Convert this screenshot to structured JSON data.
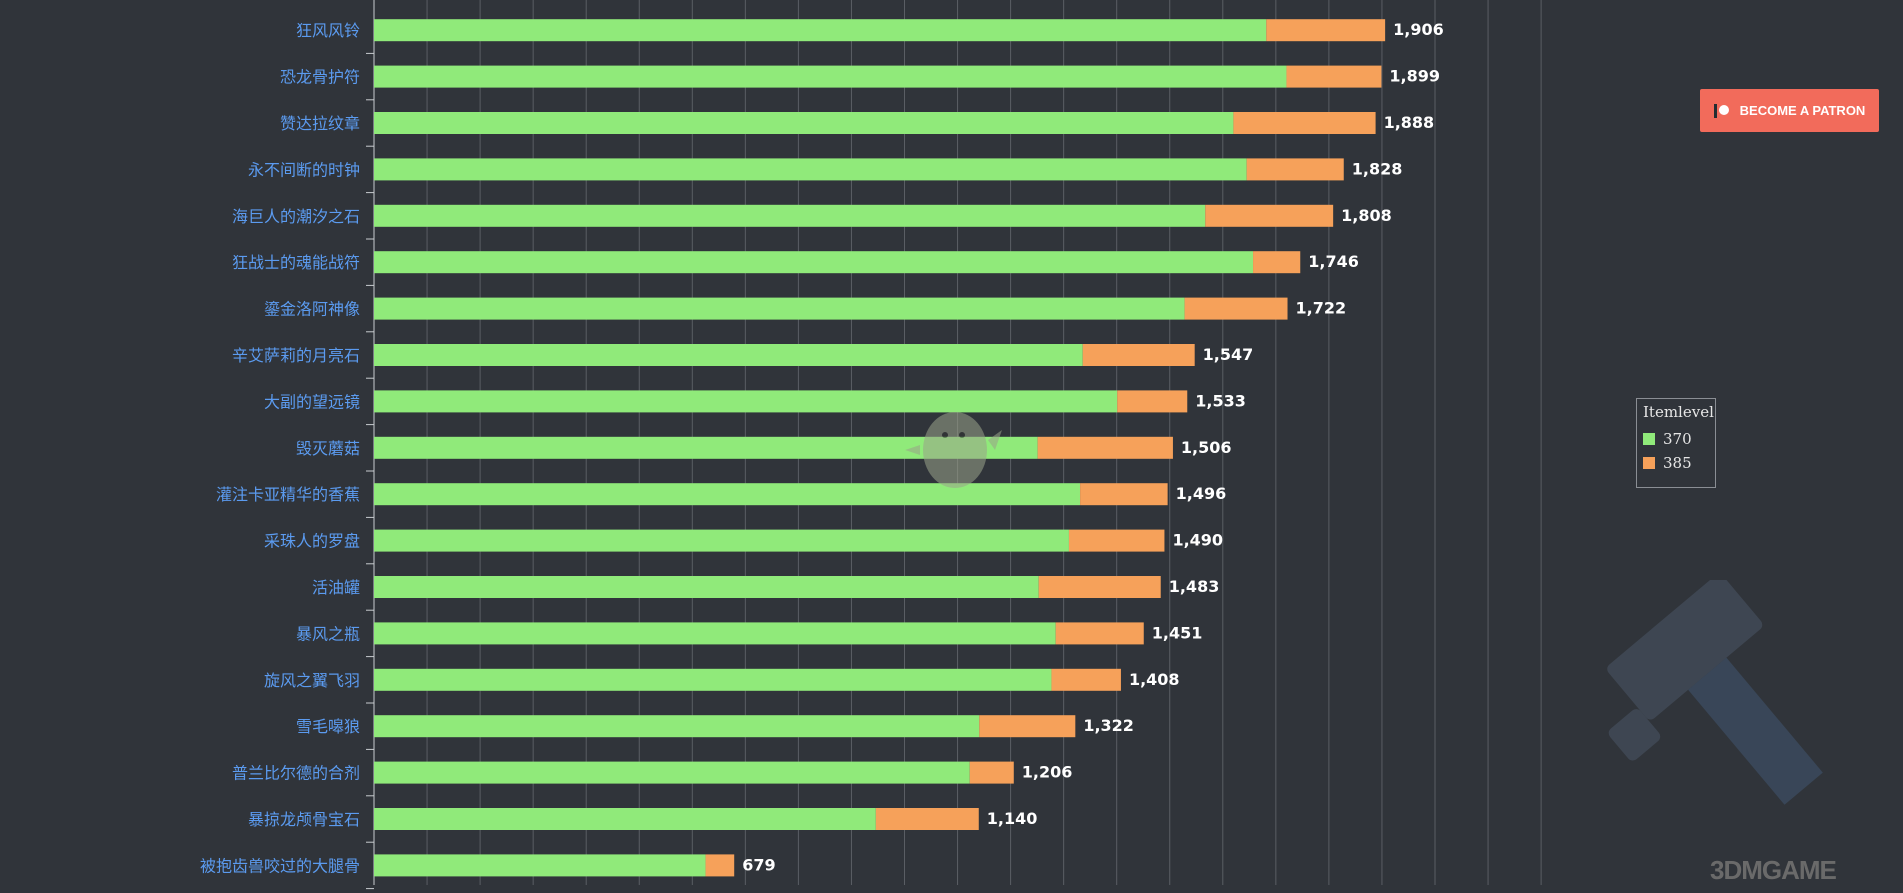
{
  "patron_button": {
    "label": "BECOME A PATRON"
  },
  "legend": {
    "title": "Itemlevel",
    "items": [
      {
        "label": "370",
        "color": "#90ea7a"
      },
      {
        "label": "385",
        "color": "#f6a15a"
      }
    ]
  },
  "watermark": {
    "text": "3DMGAME"
  },
  "chart_data": {
    "type": "bar",
    "orientation": "horizontal",
    "stacked": true,
    "title": "",
    "xlabel": "",
    "ylabel": "",
    "xlim": [
      0,
      2200
    ],
    "grid": true,
    "legend_position": "right",
    "categories": [
      "狂风风铃",
      "恐龙骨护符",
      "赞达拉纹章",
      "永不间断的时钟",
      "海巨人的潮汐之石",
      "狂战士的魂能战符",
      "鎏金洛阿神像",
      "辛艾萨莉的月亮石",
      "大副的望远镜",
      "毁灭蘑菇",
      "灌注卡亚精华的香蕉",
      "采珠人的罗盘",
      "活油罐",
      "暴风之瓶",
      "旋风之翼飞羽",
      "雪毛嗥狼",
      "普兰比尔德的合剂",
      "暴掠龙颅骨宝石",
      "被抱齿兽咬过的大腿骨"
    ],
    "series": [
      {
        "name": "370",
        "color": "#90ea7a",
        "values": [
          1682,
          1720,
          1620,
          1645,
          1567,
          1657,
          1528,
          1336,
          1401,
          1251,
          1331,
          1310,
          1253,
          1285,
          1277,
          1141,
          1123,
          946,
          625
        ]
      },
      {
        "name": "385",
        "color": "#f6a15a",
        "values": [
          224,
          179,
          268,
          183,
          241,
          89,
          194,
          211,
          132,
          255,
          165,
          180,
          230,
          166,
          131,
          181,
          83,
          194,
          54
        ]
      }
    ],
    "totals": [
      "1,906",
      "1,899",
      "1,888",
      "1,828",
      "1,808",
      "1,746",
      "1,722",
      "1,547",
      "1,533",
      "1,506",
      "1,496",
      "1,490",
      "1,483",
      "1,451",
      "1,408",
      "1,322",
      "1,206",
      "1,140",
      "679"
    ]
  }
}
